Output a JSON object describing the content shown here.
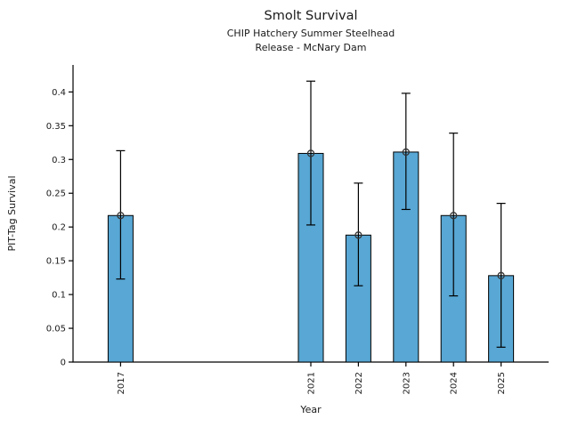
{
  "figure": {
    "title": "Smolt Survival",
    "subtitle1": "CHIP Hatchery Summer Steelhead",
    "subtitle2": "Release - McNary Dam",
    "xlabel": "Year",
    "ylabel": "PIT-Tag Survival"
  },
  "chart_data": {
    "type": "bar",
    "title": "Smolt Survival",
    "subtitle": [
      "CHIP Hatchery Summer Steelhead",
      "Release - McNary Dam"
    ],
    "xlabel": "Year",
    "ylabel": "PIT-Tag Survival",
    "categories": [
      "2017",
      "2021",
      "2022",
      "2023",
      "2024",
      "2025"
    ],
    "x_years": [
      2017,
      2021,
      2022,
      2023,
      2024,
      2025
    ],
    "values": [
      0.217,
      0.309,
      0.188,
      0.311,
      0.217,
      0.128
    ],
    "error_low": [
      0.123,
      0.203,
      0.113,
      0.226,
      0.098,
      0.022
    ],
    "error_high": [
      0.313,
      0.416,
      0.265,
      0.398,
      0.339,
      0.235
    ],
    "ylim": [
      0,
      0.44
    ],
    "xlim": [
      2016,
      2026
    ],
    "yticks": [
      0,
      0.05,
      0.1,
      0.15,
      0.2,
      0.25,
      0.3,
      0.35,
      0.4
    ],
    "ytick_labels": [
      "0",
      "0.05",
      "0.1",
      "0.15",
      "0.2",
      "0.25",
      "0.3",
      "0.35",
      "0.4"
    ],
    "bar_color": "#58A7D4",
    "bar_edge_color": "#000000",
    "error_color": "#000000",
    "marker": "open-circle",
    "marker_color": "#333333",
    "grid": false,
    "legend": null
  }
}
